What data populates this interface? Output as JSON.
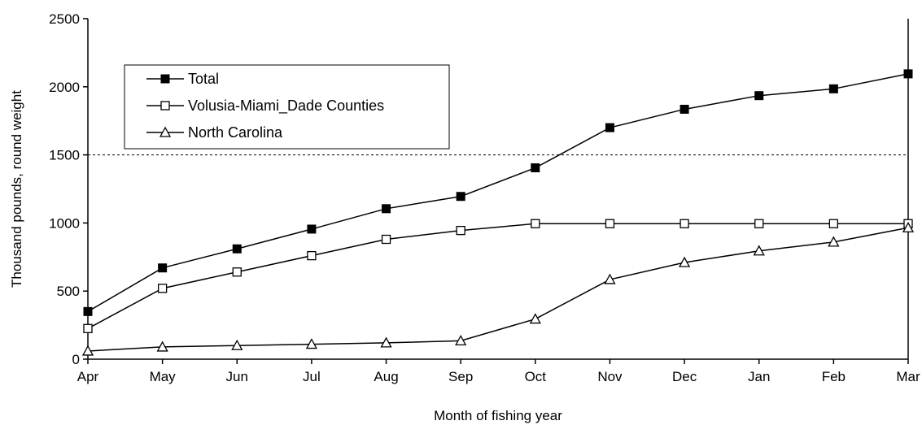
{
  "chart_data": {
    "type": "line",
    "title": "",
    "xlabel": "Month of fishing year",
    "ylabel": "Thousand pounds, round weight",
    "categories": [
      "Apr",
      "May",
      "Jun",
      "Jul",
      "Aug",
      "Sep",
      "Oct",
      "Nov",
      "Dec",
      "Jan",
      "Feb",
      "Mar"
    ],
    "ylim": [
      0,
      2500
    ],
    "yticks": [
      "0",
      "500",
      "1000",
      "1500",
      "2000",
      "2500"
    ],
    "reference_line": {
      "value": 1500,
      "style": "dashed"
    },
    "grid": false,
    "legend_position": "top-left",
    "series": [
      {
        "name": "Total",
        "marker": "filled-square",
        "values": [
          350,
          670,
          810,
          955,
          1105,
          1195,
          1405,
          1700,
          1835,
          1935,
          1985,
          2095
        ]
      },
      {
        "name": "Volusia-Miami_Dade Counties",
        "marker": "open-square",
        "values": [
          225,
          520,
          640,
          760,
          880,
          945,
          995,
          995,
          995,
          995,
          995,
          995
        ]
      },
      {
        "name": "North Carolina",
        "marker": "open-triangle",
        "values": [
          60,
          90,
          100,
          110,
          120,
          135,
          295,
          585,
          710,
          795,
          860,
          965
        ]
      }
    ]
  }
}
